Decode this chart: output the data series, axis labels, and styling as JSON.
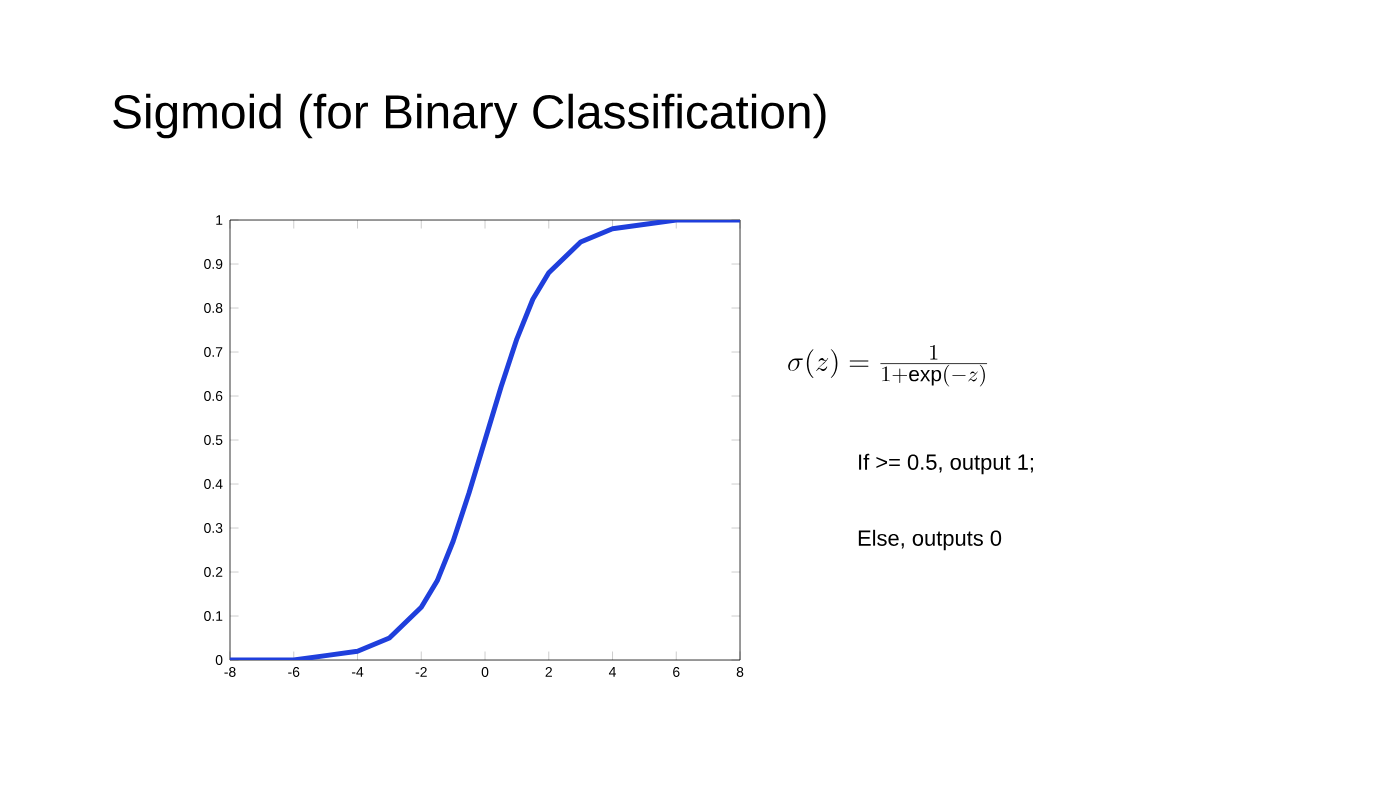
{
  "chart_data": {
    "type": "line",
    "title": "Sigmoid (for Binary Classification)",
    "x": [
      -8,
      -6,
      -5,
      -4,
      -3,
      -2,
      -1.5,
      -1,
      -0.5,
      0,
      0.5,
      1,
      1.5,
      2,
      3,
      4,
      5,
      6,
      8
    ],
    "series": [
      {
        "color": "#1f3fdc",
        "values": [
          0.0,
          0.0,
          0.01,
          0.02,
          0.05,
          0.12,
          0.18,
          0.27,
          0.38,
          0.5,
          0.62,
          0.73,
          0.82,
          0.88,
          0.95,
          0.98,
          0.99,
          1.0,
          1.0
        ]
      }
    ],
    "xlim": [
      -8,
      8
    ],
    "ylim": [
      0,
      1
    ],
    "xticks": [
      -8,
      -6,
      -4,
      -2,
      0,
      2,
      4,
      6,
      8
    ],
    "yticks": [
      0,
      0.1,
      0.2,
      0.3,
      0.4,
      0.5,
      0.6,
      0.7,
      0.8,
      0.9,
      1
    ],
    "grid": false,
    "marker": "none",
    "line_style": "solid",
    "annotations": [
      "\\sigma(z) = \\frac{1}{1+\\exp(-z)}",
      "If >= 0.5, output 1;",
      "Else, outputs 0"
    ]
  }
}
